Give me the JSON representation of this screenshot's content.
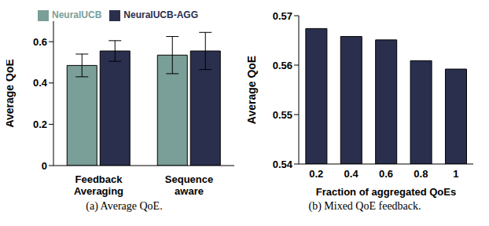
{
  "chart_data": [
    {
      "type": "bar",
      "title": "(a) Average QoE.",
      "ylabel": "Average QoE",
      "categories": [
        "Feedback Averaging",
        "Sequence aware"
      ],
      "series": [
        {
          "name": "NeuralUCB",
          "color": "#7a9e98",
          "values": [
            0.485,
            0.535
          ],
          "errors": [
            0.055,
            0.09
          ]
        },
        {
          "name": "NeuralUCB-AGG",
          "color": "#2b2f4e",
          "values": [
            0.555,
            0.555
          ],
          "errors": [
            0.05,
            0.09
          ]
        }
      ],
      "ylim": [
        0,
        0.7
      ],
      "yticks": [
        0,
        0.2,
        0.4,
        0.6
      ],
      "grid": false,
      "legend": "top"
    },
    {
      "type": "bar",
      "title": "(b) Mixed QoE feedback.",
      "xlabel": "Fraction of aggregated QoEs",
      "ylabel": "Average QoE",
      "categories": [
        "0.2",
        "0.4",
        "0.6",
        "0.8",
        "1"
      ],
      "values": [
        0.5674,
        0.5658,
        0.5651,
        0.5609,
        0.5592
      ],
      "color": "#2b2f4e",
      "ylim": [
        0.54,
        0.57
      ],
      "yticks": [
        0.54,
        0.55,
        0.56,
        0.57
      ],
      "grid": false
    }
  ]
}
